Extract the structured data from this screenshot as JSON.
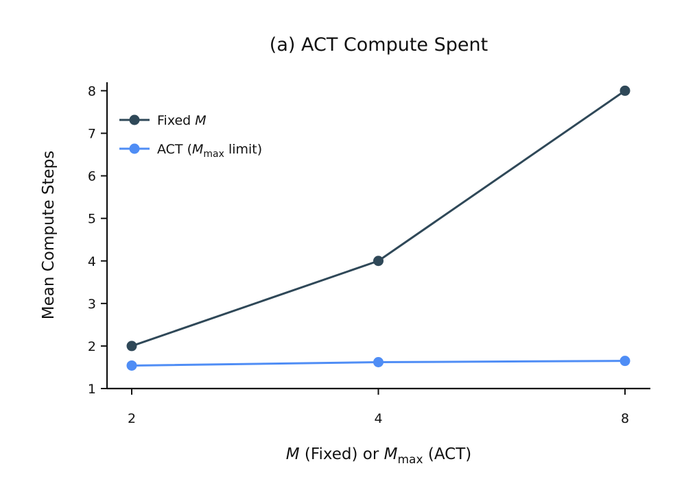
{
  "chart_data": {
    "type": "line",
    "title": "(a) ACT Compute Spent",
    "xlabel": {
      "prefix_italic": "M",
      "middle": " (Fixed) or ",
      "var_italic": "M",
      "sub": "max",
      "suffix": " (ACT)"
    },
    "ylabel": "Mean Compute Steps",
    "x": [
      2,
      4,
      8
    ],
    "x_tick_labels": [
      "2",
      "4",
      "8"
    ],
    "y_ticks": [
      1,
      2,
      3,
      4,
      5,
      6,
      7,
      8
    ],
    "y_tick_labels": [
      "1",
      "2",
      "3",
      "4",
      "5",
      "6",
      "7",
      "8"
    ],
    "ylim": [
      1,
      8.2
    ],
    "x_scale": "log2",
    "grid": false,
    "legend_position": "top-left",
    "series": [
      {
        "id": "fixed",
        "legend": {
          "text": "Fixed ",
          "italic": "M",
          "sub": "",
          "suffix": ""
        },
        "color": "#2f4858",
        "values": [
          2,
          4,
          8
        ]
      },
      {
        "id": "act",
        "legend": {
          "text": "ACT (",
          "italic": "M",
          "sub": "max",
          "suffix": " limit)"
        },
        "color": "#4f8df5",
        "values": [
          1.54,
          1.62,
          1.65
        ]
      }
    ]
  }
}
